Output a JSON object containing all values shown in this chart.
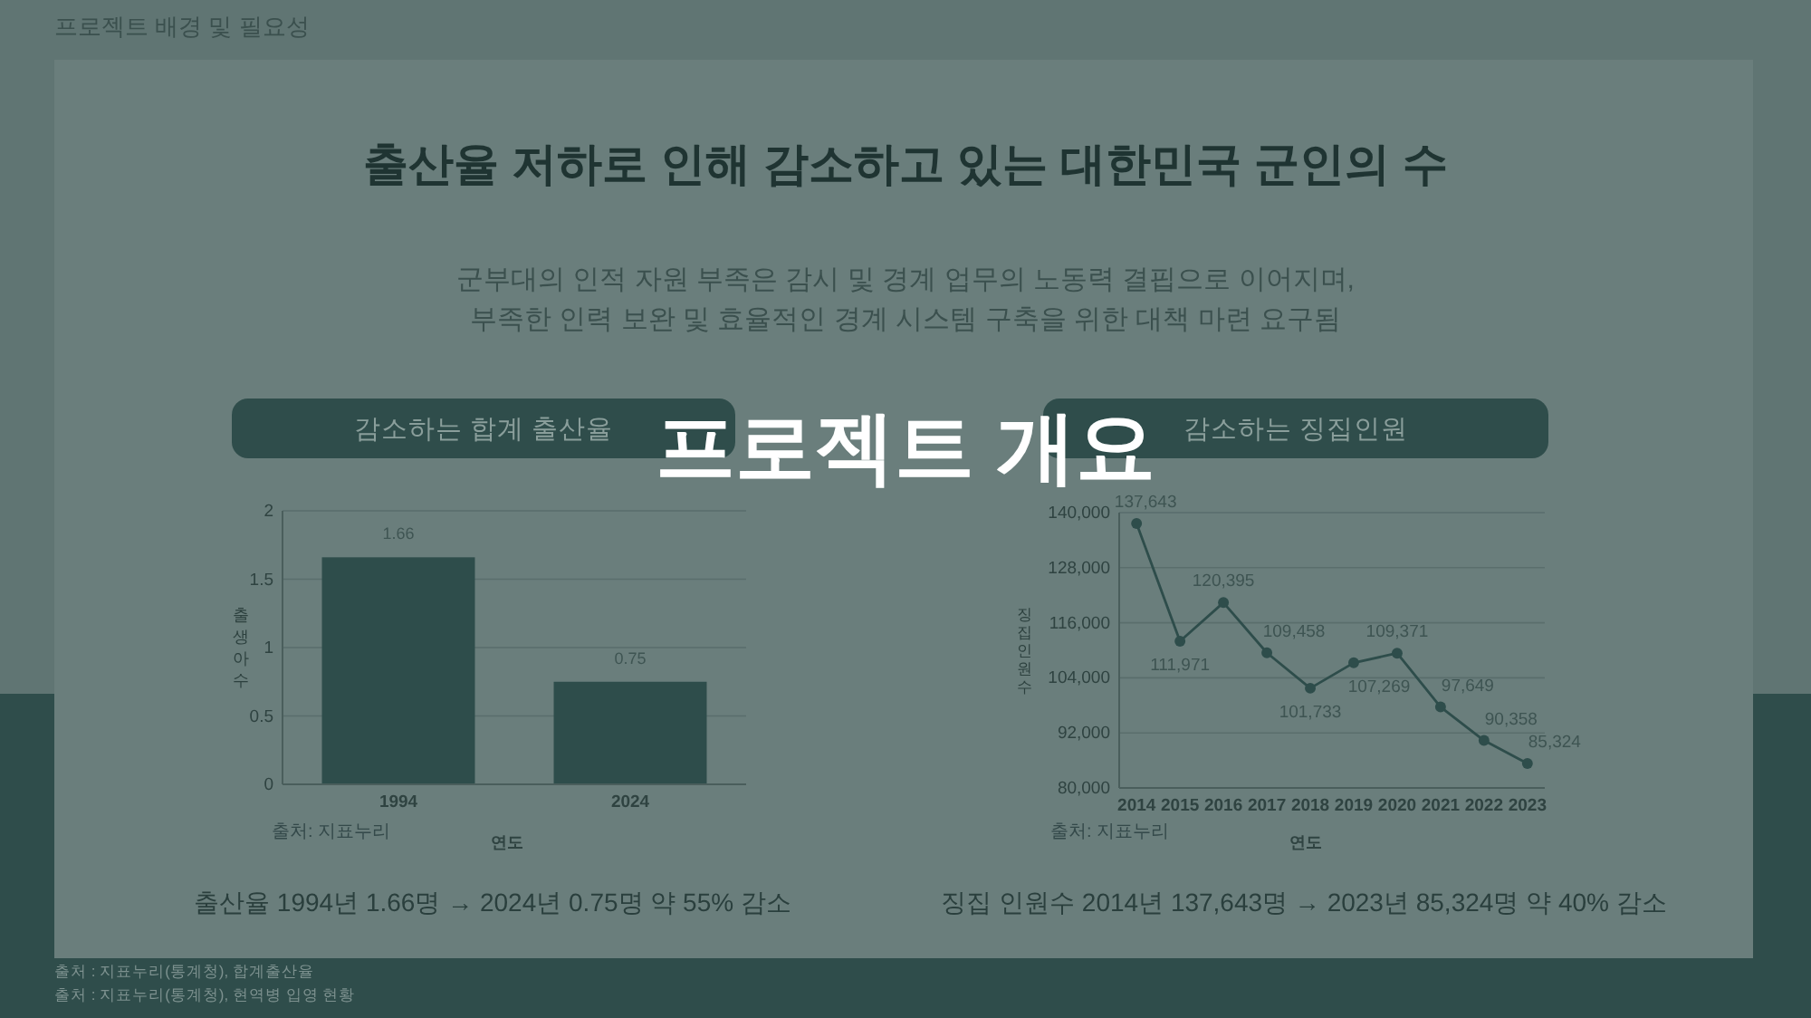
{
  "chart_data": [
    {
      "type": "other",
      "title": "출산율 저하로 인해 감소하고 있는 대한민국 군인의 수",
      "subtitle": "군부대의 인적 자원 부족은 감시 및 경계 업무의 노동력 결핍으로 이어지며,\n부족한 인력 보완 및 효율적인 경계 시스템 구축을 위한 대책 마련 요구됨",
      "annotations": [
        "프로젝트 배경 및 필요성",
        "프로젝트 개요",
        "출처 : 지표누리(통계청), 합계출산율",
        "출처 : 지표누리(통계청), 현역병 입영 현황"
      ]
    },
    {
      "type": "bar",
      "title": "감소하는 합계 출산율",
      "categories": [
        "1994",
        "2024"
      ],
      "values": [
        1.66,
        0.75
      ],
      "color": "#2e4d4b",
      "ylim": [
        0,
        2
      ],
      "yticks": [
        0,
        0.5,
        1,
        1.5,
        2
      ],
      "grid": "y",
      "xlabel": "연도",
      "ylabel": "출생아수",
      "data_labels": true,
      "annotations": [
        "출처: 지표누리",
        "출산율 1994년 1.66명 → 2024년 0.75명 약 55% 감소"
      ]
    },
    {
      "type": "line",
      "title": "감소하는 징집인원",
      "categories": [
        "2014",
        "2015",
        "2016",
        "2017",
        "2018",
        "2019",
        "2020",
        "2021",
        "2022",
        "2023"
      ],
      "values": [
        137643,
        111971,
        120395,
        109458,
        101733,
        107269,
        109371,
        97649,
        90358,
        85324
      ],
      "value_labels": [
        "137,643",
        "111,971",
        "120,395",
        "109,458",
        "101,733",
        "107,269",
        "109,371",
        "97,649",
        "90,358",
        "85,324"
      ],
      "color": "#2e4d4b",
      "marker": "circle",
      "ylim": [
        80000,
        140000
      ],
      "yticks": [
        {
          "value": 80000,
          "label": "80,000"
        },
        {
          "value": 92000,
          "label": "92,000"
        },
        {
          "value": 104000,
          "label": "104,000"
        },
        {
          "value": 116000,
          "label": "116,000"
        },
        {
          "value": 128000,
          "label": "128,000"
        },
        {
          "value": 140000,
          "label": "140,000"
        }
      ],
      "grid": "y",
      "xlabel": "연도",
      "ylabel": "징집인원수",
      "annotations": [
        "출처: 지표누리",
        "징집 인원수 2014년 137,643명 → 2023년 85,324명 약 40% 감소"
      ]
    }
  ]
}
